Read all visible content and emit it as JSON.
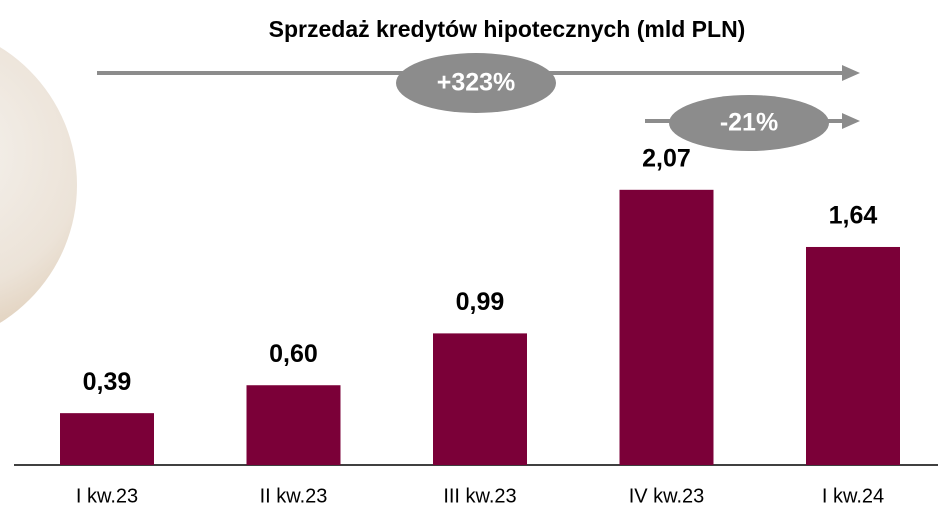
{
  "chart_data": {
    "type": "bar",
    "title": "Sprzedaż kredytów hipotecznych (mld PLN)",
    "categories": [
      "I kw.23",
      "II kw.23",
      "III kw.23",
      "IV kw.23",
      "I kw.24"
    ],
    "values": [
      0.39,
      0.6,
      0.99,
      2.07,
      1.64
    ],
    "value_labels": [
      "0,39",
      "0,60",
      "0,99",
      "2,07",
      "1,64"
    ],
    "color": "#7b0038",
    "ylim": [
      0,
      3.4
    ],
    "annotations": [
      "+323%",
      "-21%"
    ]
  }
}
